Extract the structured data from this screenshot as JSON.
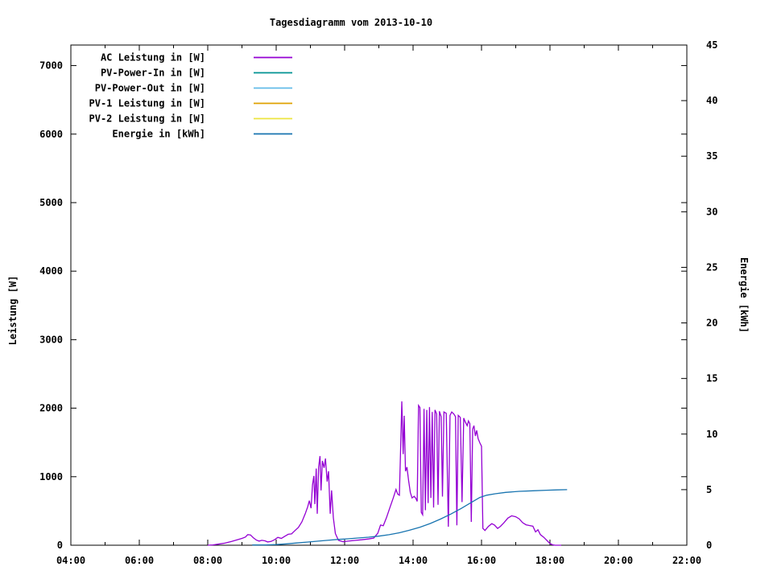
{
  "title": "Tagesdiagramm vom 2013-10-10",
  "chart_data": {
    "type": "line",
    "title": "Tagesdiagramm vom 2013-10-10",
    "grid": false,
    "legend_position": "top-left-inside",
    "x_axis": {
      "label": "",
      "unit": "hours",
      "range": [
        4,
        22
      ],
      "major_ticks": [
        [
          4,
          "04:00"
        ],
        [
          6,
          "06:00"
        ],
        [
          8,
          "08:00"
        ],
        [
          10,
          "10:00"
        ],
        [
          12,
          "12:00"
        ],
        [
          14,
          "14:00"
        ],
        [
          16,
          "16:00"
        ],
        [
          18,
          "18:00"
        ],
        [
          20,
          "20:00"
        ],
        [
          22,
          "22:00"
        ]
      ],
      "minor_ticks": [
        5,
        7,
        9,
        11,
        13,
        15,
        17,
        19,
        21
      ]
    },
    "y_axis": {
      "label": "Leistung [W]",
      "range": [
        0,
        7300
      ],
      "ticks": [
        [
          0,
          "0"
        ],
        [
          1000,
          "1000"
        ],
        [
          2000,
          "2000"
        ],
        [
          3000,
          "3000"
        ],
        [
          4000,
          "4000"
        ],
        [
          5000,
          "5000"
        ],
        [
          6000,
          "6000"
        ],
        [
          7000,
          "7000"
        ]
      ]
    },
    "y2_axis": {
      "label": "Energie [kWh]",
      "range": [
        0,
        45
      ],
      "ticks": [
        [
          0,
          "0"
        ],
        [
          5,
          "5"
        ],
        [
          10,
          "10"
        ],
        [
          15,
          "15"
        ],
        [
          20,
          "20"
        ],
        [
          25,
          "25"
        ],
        [
          30,
          "30"
        ],
        [
          35,
          "35"
        ],
        [
          40,
          "40"
        ],
        [
          45,
          "45"
        ]
      ]
    },
    "legend": [
      {
        "label": "AC Leistung in [W]",
        "color": "#9400d3"
      },
      {
        "label": "PV-Power-In in [W]",
        "color": "#009393"
      },
      {
        "label": "PV-Power-Out in [W]",
        "color": "#63bbe8"
      },
      {
        "label": "PV-1 Leistung in [W]",
        "color": "#dfa000"
      },
      {
        "label": "PV-2 Leistung in [W]",
        "color": "#ede53f"
      },
      {
        "label": "Energie in [kWh]",
        "color": "#1874b0"
      }
    ],
    "series": [
      {
        "name": "AC Leistung in [W]",
        "color": "#9400d3",
        "axis": "y1",
        "points": [
          [
            8.0,
            0
          ],
          [
            8.15,
            5
          ],
          [
            8.3,
            15
          ],
          [
            8.5,
            30
          ],
          [
            8.7,
            55
          ],
          [
            8.9,
            85
          ],
          [
            9.0,
            100
          ],
          [
            9.1,
            120
          ],
          [
            9.17,
            155
          ],
          [
            9.25,
            150
          ],
          [
            9.33,
            110
          ],
          [
            9.42,
            75
          ],
          [
            9.5,
            60
          ],
          [
            9.58,
            72
          ],
          [
            9.67,
            65
          ],
          [
            9.75,
            48
          ],
          [
            9.85,
            55
          ],
          [
            9.95,
            80
          ],
          [
            10.05,
            115
          ],
          [
            10.15,
            100
          ],
          [
            10.25,
            130
          ],
          [
            10.35,
            160
          ],
          [
            10.45,
            165
          ],
          [
            10.55,
            215
          ],
          [
            10.65,
            260
          ],
          [
            10.75,
            340
          ],
          [
            10.85,
            460
          ],
          [
            10.92,
            560
          ],
          [
            10.97,
            650
          ],
          [
            11.02,
            540
          ],
          [
            11.06,
            880
          ],
          [
            11.1,
            1010
          ],
          [
            11.13,
            600
          ],
          [
            11.17,
            1120
          ],
          [
            11.2,
            460
          ],
          [
            11.24,
            1140
          ],
          [
            11.28,
            1300
          ],
          [
            11.31,
            800
          ],
          [
            11.35,
            1230
          ],
          [
            11.4,
            1130
          ],
          [
            11.44,
            1265
          ],
          [
            11.49,
            930
          ],
          [
            11.53,
            1080
          ],
          [
            11.58,
            460
          ],
          [
            11.62,
            800
          ],
          [
            11.67,
            400
          ],
          [
            11.73,
            170
          ],
          [
            11.82,
            70
          ],
          [
            11.95,
            52
          ],
          [
            12.1,
            60
          ],
          [
            12.3,
            70
          ],
          [
            12.5,
            80
          ],
          [
            12.7,
            92
          ],
          [
            12.85,
            105
          ],
          [
            12.97,
            175
          ],
          [
            13.05,
            295
          ],
          [
            13.13,
            285
          ],
          [
            13.22,
            400
          ],
          [
            13.32,
            545
          ],
          [
            13.42,
            690
          ],
          [
            13.5,
            815
          ],
          [
            13.55,
            745
          ],
          [
            13.6,
            730
          ],
          [
            13.64,
            1480
          ],
          [
            13.67,
            2100
          ],
          [
            13.71,
            1330
          ],
          [
            13.74,
            1890
          ],
          [
            13.78,
            1080
          ],
          [
            13.82,
            1140
          ],
          [
            13.87,
            940
          ],
          [
            13.92,
            770
          ],
          [
            13.97,
            690
          ],
          [
            14.03,
            715
          ],
          [
            14.08,
            685
          ],
          [
            14.12,
            640
          ],
          [
            14.16,
            2040
          ],
          [
            14.2,
            2010
          ],
          [
            14.24,
            480
          ],
          [
            14.28,
            445
          ],
          [
            14.32,
            1990
          ],
          [
            14.36,
            510
          ],
          [
            14.4,
            1975
          ],
          [
            14.44,
            615
          ],
          [
            14.48,
            2015
          ],
          [
            14.52,
            690
          ],
          [
            14.56,
            1945
          ],
          [
            14.6,
            550
          ],
          [
            14.64,
            1975
          ],
          [
            14.69,
            1915
          ],
          [
            14.73,
            590
          ],
          [
            14.77,
            1955
          ],
          [
            14.82,
            1875
          ],
          [
            14.86,
            710
          ],
          [
            14.9,
            1945
          ],
          [
            14.97,
            1925
          ],
          [
            15.03,
            270
          ],
          [
            15.08,
            1895
          ],
          [
            15.13,
            1945
          ],
          [
            15.19,
            1915
          ],
          [
            15.24,
            1875
          ],
          [
            15.28,
            290
          ],
          [
            15.32,
            1895
          ],
          [
            15.38,
            1865
          ],
          [
            15.43,
            630
          ],
          [
            15.48,
            1855
          ],
          [
            15.53,
            1795
          ],
          [
            15.58,
            1745
          ],
          [
            15.62,
            1815
          ],
          [
            15.66,
            1775
          ],
          [
            15.7,
            340
          ],
          [
            15.74,
            1695
          ],
          [
            15.78,
            1745
          ],
          [
            15.82,
            1595
          ],
          [
            15.86,
            1675
          ],
          [
            15.9,
            1555
          ],
          [
            15.95,
            1495
          ],
          [
            16.0,
            1445
          ],
          [
            16.04,
            245
          ],
          [
            16.1,
            215
          ],
          [
            16.2,
            275
          ],
          [
            16.3,
            315
          ],
          [
            16.38,
            295
          ],
          [
            16.47,
            245
          ],
          [
            16.55,
            275
          ],
          [
            16.65,
            325
          ],
          [
            16.77,
            395
          ],
          [
            16.88,
            430
          ],
          [
            17.0,
            415
          ],
          [
            17.1,
            385
          ],
          [
            17.2,
            330
          ],
          [
            17.3,
            298
          ],
          [
            17.4,
            288
          ],
          [
            17.5,
            278
          ],
          [
            17.58,
            195
          ],
          [
            17.65,
            225
          ],
          [
            17.72,
            155
          ],
          [
            17.82,
            115
          ],
          [
            17.92,
            65
          ],
          [
            18.0,
            25
          ],
          [
            18.08,
            6
          ],
          [
            18.15,
            0
          ],
          [
            18.33,
            0
          ]
        ]
      },
      {
        "name": "PV-Power-In in [W]",
        "color": "#009393",
        "axis": "y1",
        "points": []
      },
      {
        "name": "PV-Power-Out in [W]",
        "color": "#63bbe8",
        "axis": "y1",
        "points": []
      },
      {
        "name": "PV-1 Leistung in [W]",
        "color": "#dfa000",
        "axis": "y1",
        "points": []
      },
      {
        "name": "PV-2 Leistung in [W]",
        "color": "#ede53f",
        "axis": "y1",
        "points": []
      },
      {
        "name": "Energie in [kWh]",
        "color": "#1874b0",
        "axis": "y2",
        "points": [
          [
            9.3,
            0.02
          ],
          [
            9.7,
            0.03
          ],
          [
            10.0,
            0.06
          ],
          [
            10.3,
            0.12
          ],
          [
            10.6,
            0.2
          ],
          [
            10.9,
            0.28
          ],
          [
            11.2,
            0.36
          ],
          [
            11.5,
            0.44
          ],
          [
            11.8,
            0.52
          ],
          [
            12.1,
            0.58
          ],
          [
            12.4,
            0.65
          ],
          [
            12.7,
            0.72
          ],
          [
            13.0,
            0.82
          ],
          [
            13.3,
            0.95
          ],
          [
            13.6,
            1.12
          ],
          [
            13.9,
            1.35
          ],
          [
            14.2,
            1.62
          ],
          [
            14.5,
            1.95
          ],
          [
            14.8,
            2.35
          ],
          [
            15.1,
            2.8
          ],
          [
            15.4,
            3.3
          ],
          [
            15.7,
            3.85
          ],
          [
            15.95,
            4.3
          ],
          [
            16.15,
            4.5
          ],
          [
            16.4,
            4.63
          ],
          [
            16.7,
            4.75
          ],
          [
            17.1,
            4.85
          ],
          [
            17.5,
            4.9
          ],
          [
            17.9,
            4.95
          ],
          [
            18.2,
            4.98
          ],
          [
            18.5,
            5.0
          ]
        ]
      }
    ]
  }
}
